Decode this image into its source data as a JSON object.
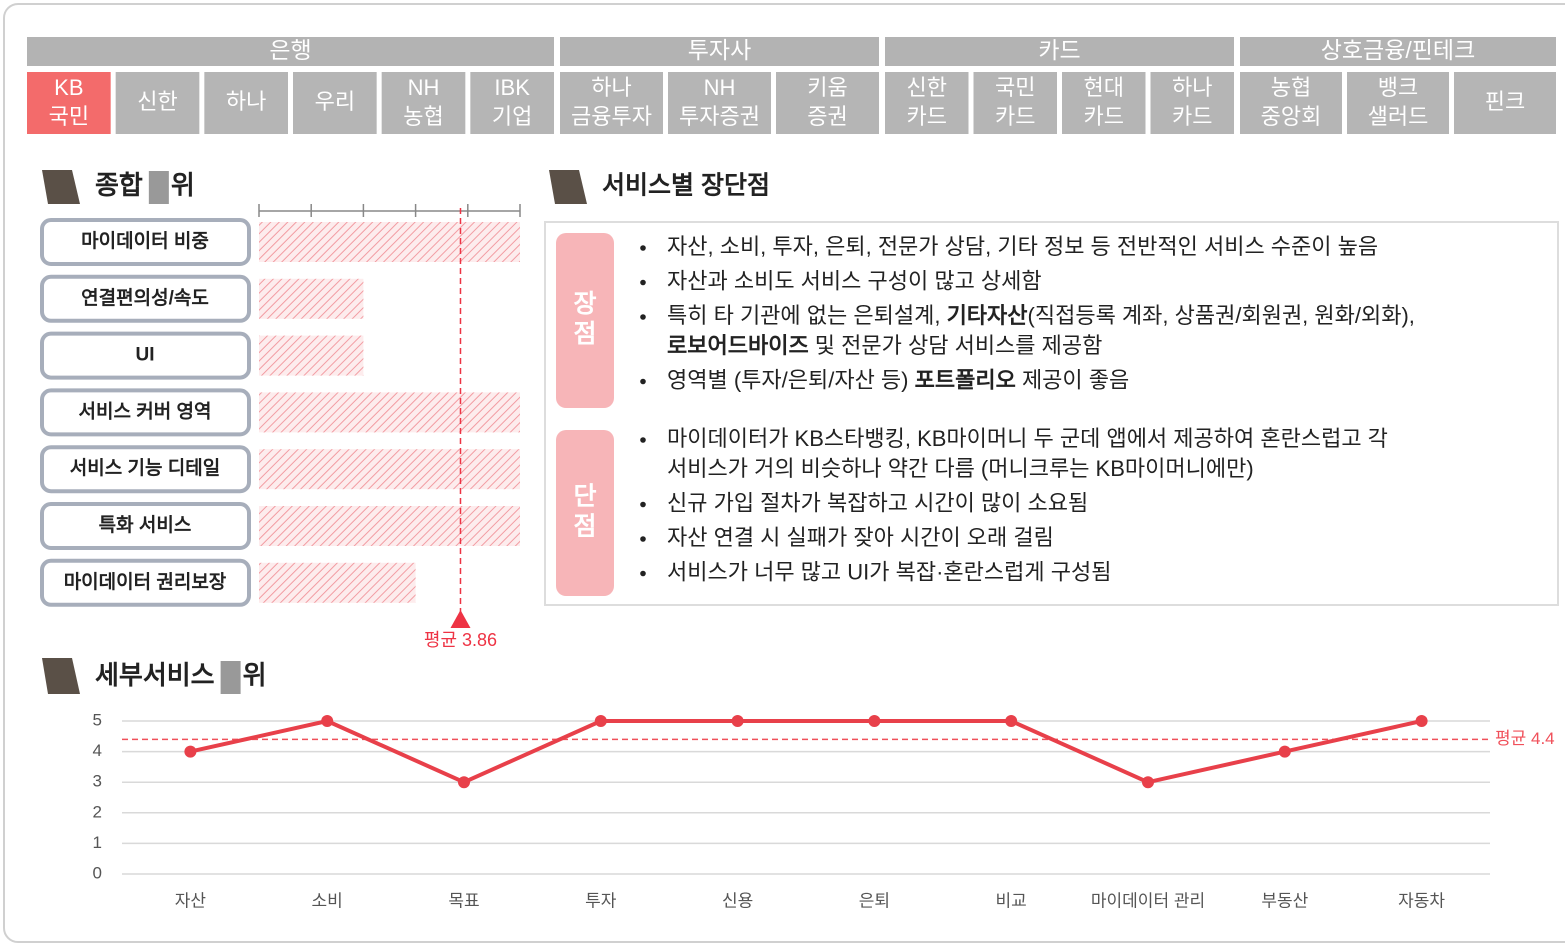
{
  "tabs": {
    "groups": [
      {
        "name": "은행",
        "tabs": [
          {
            "label": [
              "KB",
              "국민"
            ],
            "selected": true
          },
          {
            "label": [
              "신한"
            ]
          },
          {
            "label": [
              "하나"
            ]
          },
          {
            "label": [
              "우리"
            ]
          },
          {
            "label": [
              "NH",
              "농협"
            ]
          },
          {
            "label": [
              "IBK",
              "기업"
            ]
          }
        ]
      },
      {
        "name": "투자사",
        "tabs": [
          {
            "label": [
              "하나",
              "금융투자"
            ]
          },
          {
            "label": [
              "NH",
              "투자증권"
            ]
          },
          {
            "label": [
              "키움",
              "증권"
            ]
          }
        ]
      },
      {
        "name": "카드",
        "tabs": [
          {
            "label": [
              "신한",
              "카드"
            ]
          },
          {
            "label": [
              "국민",
              "카드"
            ]
          },
          {
            "label": [
              "현대",
              "카드"
            ]
          },
          {
            "label": [
              "하나",
              "카드"
            ]
          }
        ]
      },
      {
        "name": "상호금융/핀테크",
        "tabs": [
          {
            "label": [
              "농협",
              "중앙회"
            ]
          },
          {
            "label": [
              "뱅크",
              "샐러드"
            ]
          },
          {
            "label": [
              "핀크"
            ]
          }
        ]
      }
    ]
  },
  "chart_data": [
    {
      "type": "bar",
      "orientation": "horizontal",
      "title": [
        "종합",
        "위"
      ],
      "categories": [
        "마이데이터 비중",
        "연결편의성/속도",
        "UI",
        "서비스 커버 영역",
        "서비스 기능 디테일",
        "특화 서비스",
        "마이데이터 권리보장"
      ],
      "values": [
        5,
        2,
        2,
        5,
        5,
        5,
        3
      ],
      "color": "#f29ca2",
      "xlim": [
        0,
        5
      ],
      "xticks": [
        0,
        1,
        2,
        3,
        4,
        5
      ],
      "average": {
        "value": 3.86,
        "label": "평균 3.86"
      },
      "average_color": "#ee3344"
    },
    {
      "type": "line",
      "title": [
        "세부서비스",
        "위"
      ],
      "categories": [
        "자산",
        "소비",
        "목표",
        "투자",
        "신용",
        "은퇴",
        "비교",
        "마이데이터 관리",
        "부동산",
        "자동차"
      ],
      "values": [
        4,
        5,
        3,
        5,
        5,
        5,
        5,
        3,
        4,
        5
      ],
      "color": "#e8404a",
      "ylim": [
        0,
        5
      ],
      "yticks": [
        0,
        1,
        2,
        3,
        4,
        5
      ],
      "grid": true,
      "average": {
        "value": 4.4,
        "label": "평균 4.4"
      },
      "average_color": "#f0505a"
    }
  ],
  "review": {
    "title": "서비스별 장단점",
    "sections": [
      {
        "label": [
          "장",
          "점"
        ],
        "bullets": [
          [
            [
              "자산, 소비, 투자, 은퇴, 전문가 상담, 기타 정보 등  전반적인 서비스 수준이 높음"
            ]
          ],
          [
            [
              "자산과 소비도 서비스 구성이 많고 상세함"
            ]
          ],
          [
            [
              "특히 타 기관에 없는 은퇴설계, ",
              {
                "text": "기타자산",
                "bold": true
              },
              "(직접등록 계좌, 상품권/회원권, 원화/외화),"
            ],
            [
              {
                "text": "로보어드바이즈",
                "bold": true
              },
              " 및 전문가 상담 서비스를 제공함"
            ]
          ],
          [
            [
              "영역별 (투자/은퇴/자산 등) ",
              {
                "text": "포트폴리오",
                "bold": true
              },
              " 제공이 좋음"
            ]
          ]
        ]
      },
      {
        "label": [
          "단",
          "점"
        ],
        "bullets": [
          [
            [
              "마이데이터가 KB스타뱅킹, KB마이머니 두 군데 앱에서 제공하여 혼란스럽고 각"
            ],
            [
              "서비스가 거의 비슷하나 약간 다름 (머니크루는 KB마이머니에만)"
            ]
          ],
          [
            [
              "신규 가입 절차가 복잡하고 시간이 많이 소요됨"
            ]
          ],
          [
            [
              "자산 연결 시 실패가 잦아 시간이 오래 걸림"
            ]
          ],
          [
            [
              "서비스가 너무 많고 UI가 복잡·혼란스럽게 구성됨"
            ]
          ]
        ]
      }
    ]
  }
}
